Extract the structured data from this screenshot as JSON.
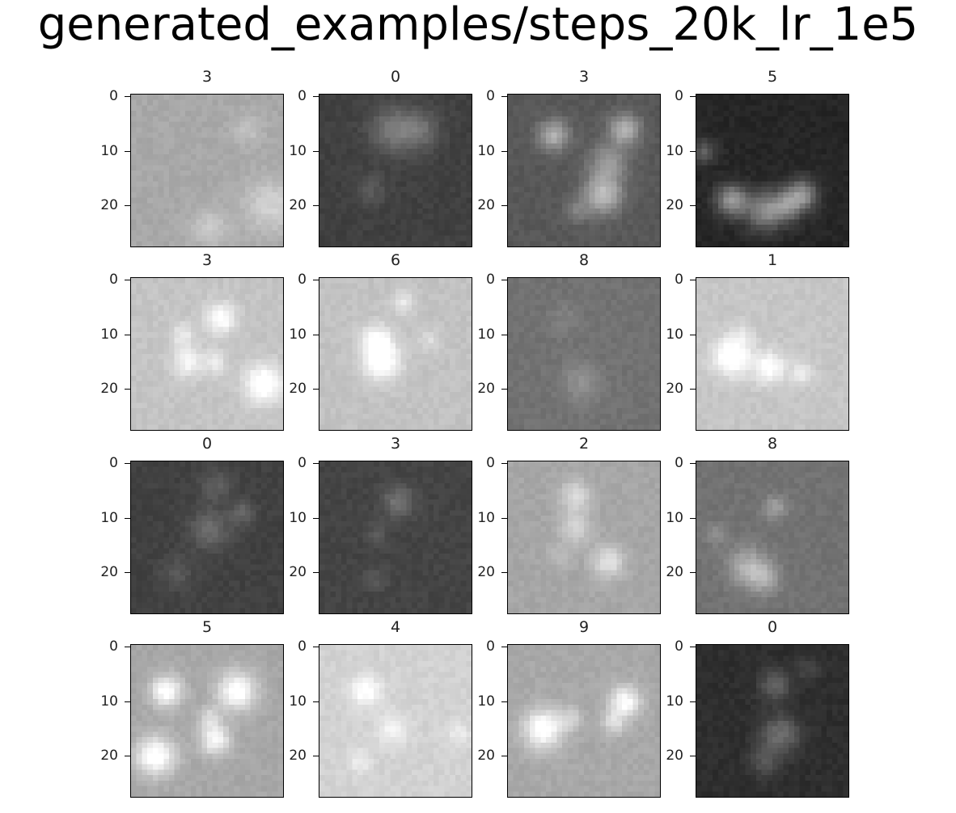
{
  "figure": {
    "title": "generated_examples/steps_20k_lr_1e5"
  },
  "chart_data": {
    "type": "heatmap",
    "title": "generated_examples/steps_20k_lr_1e5",
    "grid": {
      "rows": 4,
      "cols": 4
    },
    "image_size": [
      28,
      28
    ],
    "colormap": "gray",
    "y_ticks": [
      0,
      10,
      20
    ],
    "panels": [
      {
        "label": "3",
        "background": "#a8a8a8",
        "blobs": [
          [
            25,
            20,
            3.5,
            0.16
          ],
          [
            33,
            20,
            3.0,
            0.16
          ],
          [
            21,
            6,
            2.0,
            0.1
          ],
          [
            14,
            24,
            2.5,
            0.12
          ]
        ]
      },
      {
        "label": "0",
        "background": "#404040",
        "blobs": [
          [
            13,
            6,
            3.0,
            0.22
          ],
          [
            18,
            6,
            2.5,
            0.18
          ],
          [
            9,
            17,
            2.0,
            0.1
          ]
        ]
      },
      {
        "label": "3",
        "background": "#585858",
        "blobs": [
          [
            8,
            7,
            2.0,
            0.35
          ],
          [
            21,
            6,
            2.0,
            0.35
          ],
          [
            18,
            12,
            2.5,
            0.25
          ],
          [
            17,
            18,
            2.5,
            0.4
          ],
          [
            12,
            21,
            1.5,
            0.15
          ]
        ]
      },
      {
        "label": "5",
        "background": "#262626",
        "blobs": [
          [
            6,
            19,
            2.0,
            0.45
          ],
          [
            12,
            21,
            2.5,
            0.38
          ],
          [
            16,
            20,
            2.0,
            0.32
          ],
          [
            19,
            18,
            2.0,
            0.4
          ],
          [
            1,
            10,
            1.5,
            0.22
          ]
        ]
      },
      {
        "label": "3",
        "background": "#c4c4c4",
        "blobs": [
          [
            16,
            7,
            2.0,
            0.25
          ],
          [
            9,
            10,
            1.5,
            0.15
          ],
          [
            10,
            15,
            2.0,
            0.2
          ],
          [
            15,
            15,
            1.5,
            0.15
          ],
          [
            24,
            19,
            2.5,
            0.3
          ]
        ]
      },
      {
        "label": "6",
        "background": "#c2c2c2",
        "blobs": [
          [
            15,
            4,
            1.5,
            0.15
          ],
          [
            10,
            11,
            2.0,
            0.25
          ],
          [
            11,
            15,
            2.5,
            0.28
          ],
          [
            20,
            11,
            1.5,
            0.1
          ]
        ]
      },
      {
        "label": "8",
        "background": "#727272",
        "blobs": [
          [
            13,
            19,
            2.5,
            0.12
          ],
          [
            10,
            7,
            2.0,
            0.06
          ]
        ]
      },
      {
        "label": "1",
        "background": "#c6c6c6",
        "blobs": [
          [
            6,
            14,
            2.5,
            0.3
          ],
          [
            13,
            16,
            2.0,
            0.25
          ],
          [
            19,
            17,
            1.5,
            0.15
          ],
          [
            8,
            10,
            1.5,
            0.1
          ]
        ]
      },
      {
        "label": "0",
        "background": "#414141",
        "blobs": [
          [
            14,
            12,
            2.5,
            0.18
          ],
          [
            20,
            9,
            1.5,
            0.15
          ],
          [
            15,
            4,
            2.0,
            0.12
          ],
          [
            8,
            20,
            2.0,
            0.1
          ]
        ]
      },
      {
        "label": "3",
        "background": "#444444",
        "blobs": [
          [
            14,
            7,
            2.0,
            0.2
          ],
          [
            10,
            13,
            1.5,
            0.08
          ],
          [
            10,
            21,
            1.5,
            0.08
          ]
        ]
      },
      {
        "label": "2",
        "background": "#a6a6a6",
        "blobs": [
          [
            12,
            6,
            2.0,
            0.22
          ],
          [
            12,
            12,
            2.0,
            0.18
          ],
          [
            18,
            18,
            2.0,
            0.25
          ],
          [
            9,
            17,
            1.5,
            0.08
          ]
        ]
      },
      {
        "label": "8",
        "background": "#727272",
        "blobs": [
          [
            14,
            8,
            1.5,
            0.18
          ],
          [
            9,
            19,
            2.5,
            0.25
          ],
          [
            12,
            21,
            2.0,
            0.2
          ],
          [
            3,
            13,
            1.5,
            0.1
          ]
        ]
      },
      {
        "label": "5",
        "background": "#a7a7a7",
        "blobs": [
          [
            6,
            8,
            2.0,
            0.38
          ],
          [
            19,
            8,
            2.5,
            0.38
          ],
          [
            15,
            17,
            2.0,
            0.32
          ],
          [
            4,
            20,
            2.5,
            0.4
          ],
          [
            14,
            13,
            1.5,
            0.18
          ]
        ]
      },
      {
        "label": "4",
        "background": "#d2d2d2",
        "blobs": [
          [
            8,
            8,
            2.0,
            0.2
          ],
          [
            13,
            15,
            2.0,
            0.15
          ],
          [
            7,
            21,
            1.5,
            0.12
          ],
          [
            25,
            16,
            1.5,
            0.1
          ]
        ]
      },
      {
        "label": "9",
        "background": "#a8a8a8",
        "blobs": [
          [
            6,
            15,
            2.5,
            0.4
          ],
          [
            21,
            10,
            2.0,
            0.35
          ],
          [
            19,
            14,
            1.5,
            0.2
          ],
          [
            11,
            13,
            1.5,
            0.15
          ]
        ]
      },
      {
        "label": "0",
        "background": "#2e2e2e",
        "blobs": [
          [
            14,
            7,
            2.0,
            0.2
          ],
          [
            15,
            16,
            2.5,
            0.25
          ],
          [
            12,
            21,
            2.0,
            0.15
          ],
          [
            20,
            4,
            1.5,
            0.1
          ]
        ]
      }
    ]
  }
}
